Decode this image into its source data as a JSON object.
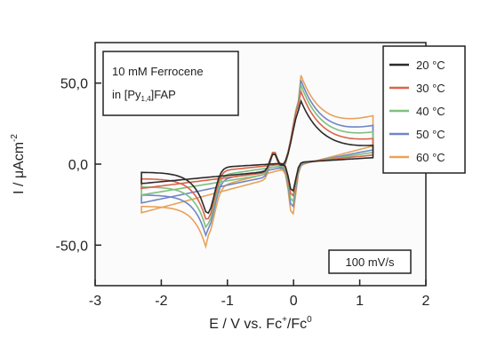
{
  "chart_data": {
    "type": "line",
    "title": "",
    "xlabel_base": "E / V vs. Fc",
    "xlabel_sup1": "+",
    "xlabel_mid": "/Fc",
    "xlabel_sup2": "0",
    "ylabel_base": "I / μAcm",
    "ylabel_sup": "-2",
    "xlim": [
      -3,
      2
    ],
    "ylim": [
      -75,
      75
    ],
    "xticks": [
      -3,
      -2,
      -1,
      0,
      1,
      2
    ],
    "xtick_labels": [
      "-3",
      "-2",
      "-1",
      "0",
      "1",
      "2"
    ],
    "yticks": [
      -50,
      0,
      50
    ],
    "ytick_labels": [
      "-50,0",
      "0,0",
      "50,0"
    ],
    "annotation_lines": [
      "10 mM Ferrocene",
      "in [Py",
      "1,4",
      "]FAP"
    ],
    "scan_rate_label": "100 mV/s",
    "legend_position": "top-right outside",
    "series": [
      {
        "name": "20 °C",
        "color": "#2b2b2b",
        "ipa": 40,
        "ipc": -33,
        "ia_end": 10,
        "ic_start": -12,
        "ic2": -5,
        "ia2": 3
      },
      {
        "name": "30 °C",
        "color": "#d9644a",
        "ipa": 46,
        "ipc": -38,
        "ia_end": 14,
        "ic_start": -15,
        "ic2": -9,
        "ia2": 5
      },
      {
        "name": "40 °C",
        "color": "#7fbf7f",
        "ipa": 50,
        "ipc": -43,
        "ia_end": 18,
        "ic_start": -19,
        "ic2": -14,
        "ia2": 7
      },
      {
        "name": "50 °C",
        "color": "#6f86c6",
        "ipa": 53,
        "ipc": -48,
        "ia_end": 22,
        "ic_start": -24,
        "ic2": -19,
        "ia2": 9
      },
      {
        "name": "60 °C",
        "color": "#e8a25a",
        "ipa": 56,
        "ipc": -55,
        "ia_end": 28,
        "ic_start": -30,
        "ic2": -26,
        "ia2": 12
      }
    ]
  }
}
